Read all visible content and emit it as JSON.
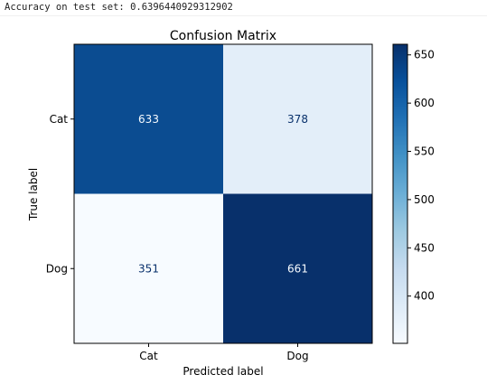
{
  "output": {
    "accuracy_text": "Accuracy on test set: 0.6396440929312902"
  },
  "chart_data": {
    "type": "heatmap",
    "title": "Confusion Matrix",
    "xlabel": "Predicted label",
    "ylabel": "True label",
    "x_categories": [
      "Cat",
      "Dog"
    ],
    "y_categories": [
      "Cat",
      "Dog"
    ],
    "values": [
      [
        633,
        378
      ],
      [
        351,
        661
      ]
    ],
    "colormap": "Blues",
    "colorbar": {
      "ticks": [
        400,
        450,
        500,
        550,
        600,
        650
      ],
      "range": [
        351,
        661
      ]
    },
    "cell_colors": {
      "Cat_Cat": "#0b4c91",
      "Cat_Dog": "#e3eef9",
      "Dog_Cat": "#f7fbff",
      "Dog_Dog": "#08306b"
    },
    "text_colors": {
      "light": "#f7fbff",
      "dark": "#08306b"
    }
  }
}
